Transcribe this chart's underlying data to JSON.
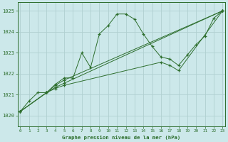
{
  "bg_color": "#cce8ea",
  "grid_color": "#b0d0d0",
  "line_color": "#2d6e2d",
  "title": "Graphe pression niveau de la mer (hPa)",
  "ylim": [
    1019.5,
    1025.4
  ],
  "xlim": [
    -0.3,
    23.3
  ],
  "yticks": [
    1020,
    1021,
    1022,
    1023,
    1024,
    1025
  ],
  "xticks": [
    0,
    1,
    2,
    3,
    4,
    5,
    6,
    7,
    8,
    9,
    10,
    11,
    12,
    13,
    14,
    15,
    16,
    17,
    18,
    19,
    20,
    21,
    22,
    23
  ],
  "series1_x": [
    0,
    1,
    2,
    3,
    4,
    5,
    6,
    7,
    8,
    9,
    10,
    11,
    12,
    13,
    14,
    15,
    16,
    17,
    18,
    19,
    20,
    21,
    22,
    23
  ],
  "series1_y": [
    1020.2,
    1020.7,
    1021.1,
    1021.1,
    1021.5,
    1021.8,
    1021.8,
    1023.0,
    1022.3,
    1023.9,
    1024.3,
    1024.85,
    1024.85,
    1024.6,
    1023.9,
    1023.3,
    1022.8,
    1022.7,
    1022.4,
    1022.9,
    1023.4,
    1023.8,
    1024.65,
    1025.0
  ],
  "series2_x": [
    0,
    3,
    4,
    5,
    23
  ],
  "series2_y": [
    1020.2,
    1021.1,
    1021.45,
    1021.7,
    1025.0
  ],
  "series3_x": [
    0,
    3,
    4,
    5,
    23
  ],
  "series3_y": [
    1020.2,
    1021.1,
    1021.35,
    1021.55,
    1025.0
  ],
  "series4_x": [
    0,
    3,
    4,
    5,
    16,
    17,
    18,
    23
  ],
  "series4_y": [
    1020.2,
    1021.1,
    1021.3,
    1021.45,
    1022.55,
    1022.4,
    1022.15,
    1025.0
  ]
}
